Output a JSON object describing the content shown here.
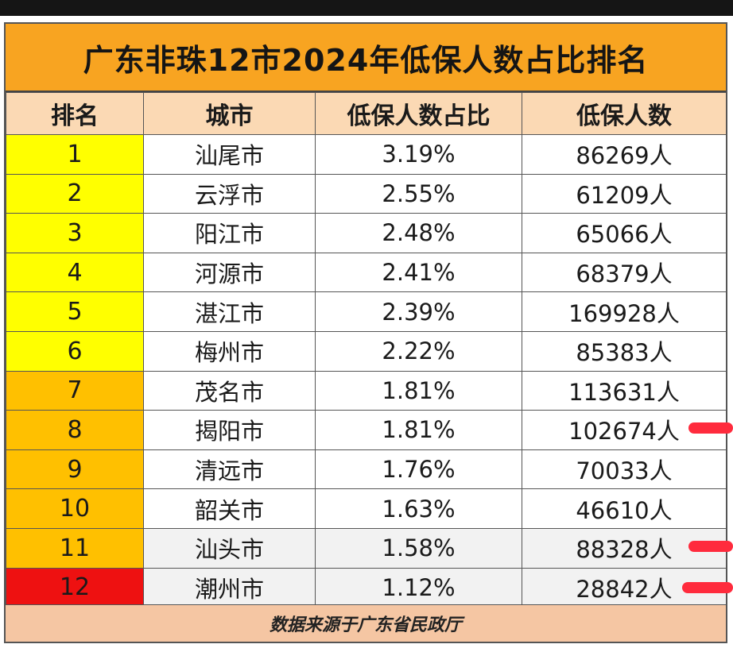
{
  "title": "广东非珠12市2024年低保人数占比排名",
  "headers": {
    "rank": "排名",
    "city": "城市",
    "ratio": "低保人数占比",
    "count": "低保人数"
  },
  "rows": [
    {
      "rank": "1",
      "city": "汕尾市",
      "ratio": "3.19%",
      "count": "86269人"
    },
    {
      "rank": "2",
      "city": "云浮市",
      "ratio": "2.55%",
      "count": "61209人"
    },
    {
      "rank": "3",
      "city": "阳江市",
      "ratio": "2.48%",
      "count": "65066人"
    },
    {
      "rank": "4",
      "city": "河源市",
      "ratio": "2.41%",
      "count": "68379人"
    },
    {
      "rank": "5",
      "city": "湛江市",
      "ratio": "2.39%",
      "count": "169928人"
    },
    {
      "rank": "6",
      "city": "梅州市",
      "ratio": "2.22%",
      "count": "85383人"
    },
    {
      "rank": "7",
      "city": "茂名市",
      "ratio": "1.81%",
      "count": "113631人"
    },
    {
      "rank": "8",
      "city": "揭阳市",
      "ratio": "1.81%",
      "count": "102674人"
    },
    {
      "rank": "9",
      "city": "清远市",
      "ratio": "1.76%",
      "count": "70033人"
    },
    {
      "rank": "10",
      "city": "韶关市",
      "ratio": "1.63%",
      "count": "46610人"
    },
    {
      "rank": "11",
      "city": "汕头市",
      "ratio": "1.58%",
      "count": "88328人"
    },
    {
      "rank": "12",
      "city": "潮州市",
      "ratio": "1.12%",
      "count": "28842人"
    }
  ],
  "rank_colors": [
    "#ffff00",
    "#ffff00",
    "#ffff00",
    "#ffff00",
    "#ffff00",
    "#ffff00",
    "#ffc000",
    "#ffc000",
    "#ffc000",
    "#ffc000",
    "#ffc000",
    "#ee1111"
  ],
  "footer": "数据来源于广东省民政厅",
  "highlight_color": "#ff2b3d"
}
